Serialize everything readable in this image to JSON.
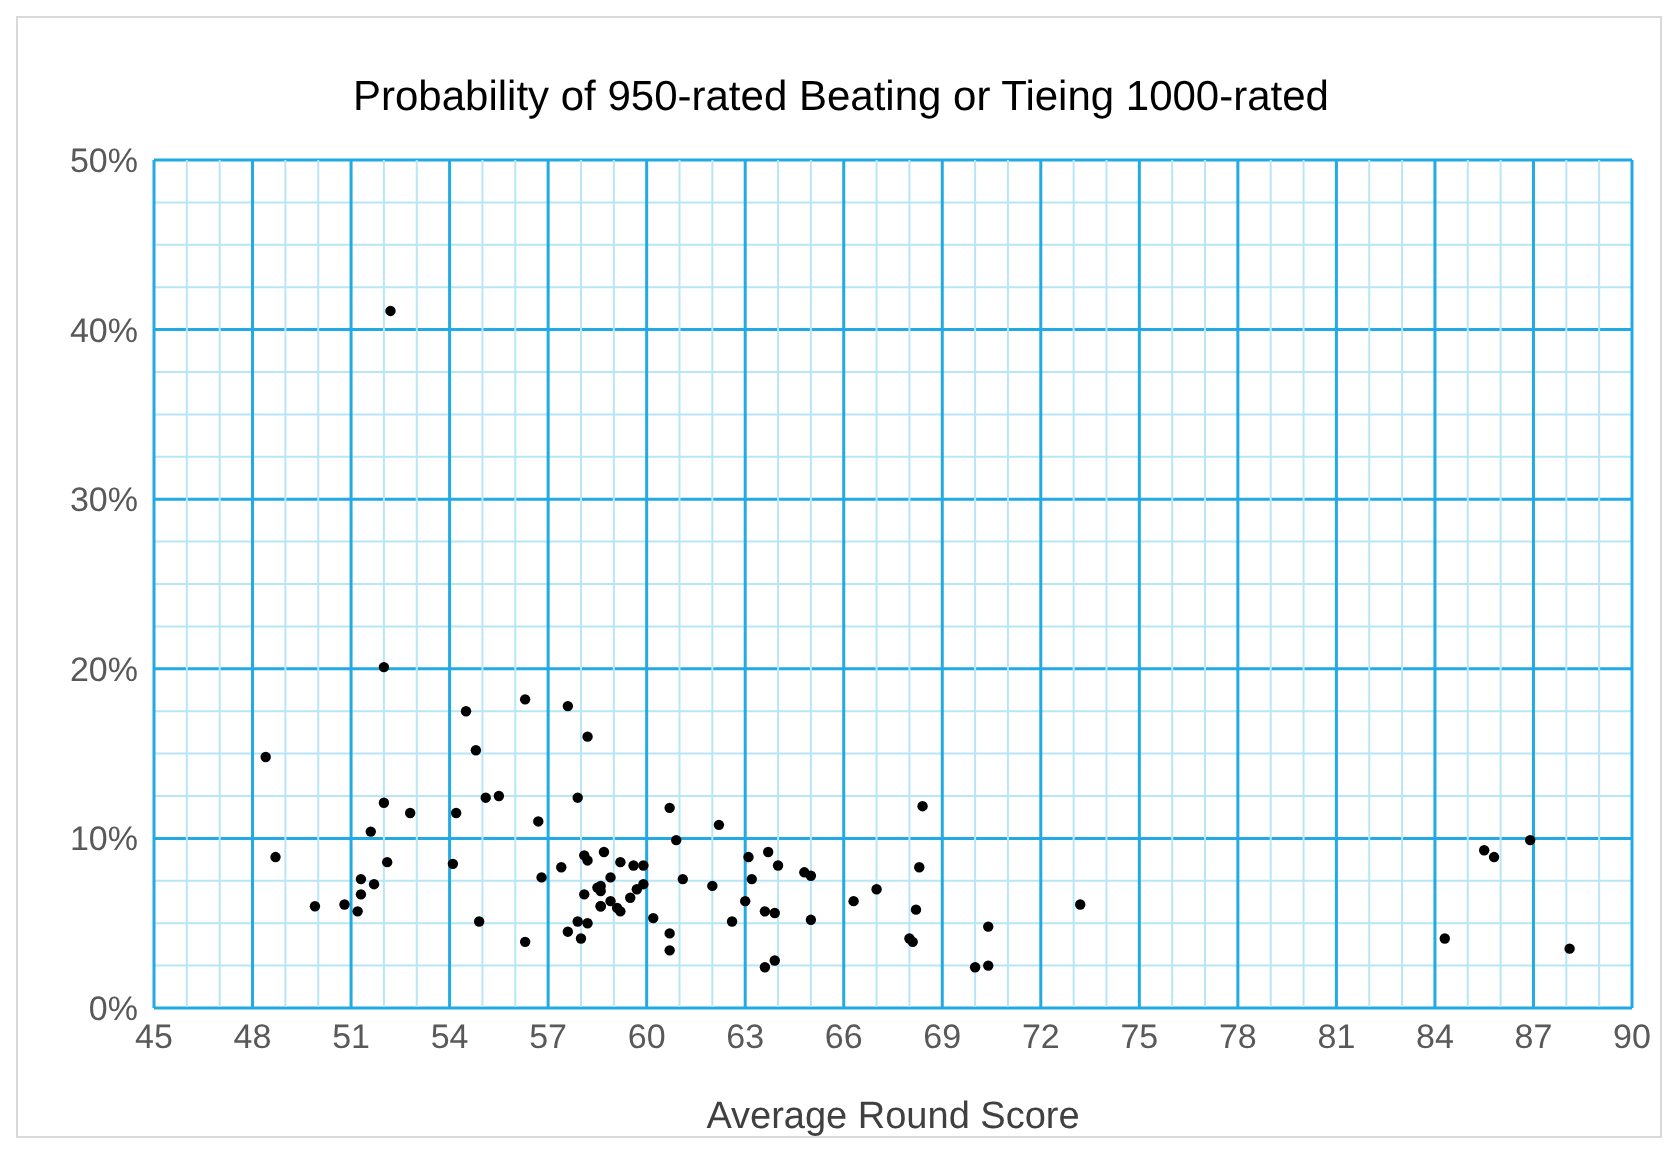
{
  "chart_data": {
    "type": "scatter",
    "title": "Probability of 950-rated Beating or Tieing 1000-rated",
    "xlabel": "Average Round Score",
    "xlim": [
      45,
      90
    ],
    "xticks": [
      45,
      {
        "value": 46,
        "label": null
      },
      {
        "value": 47,
        "label": null
      },
      48,
      {
        "value": 49,
        "label": null
      },
      {
        "value": 50,
        "label": null
      },
      51,
      {
        "value": 52,
        "label": null
      },
      {
        "value": 53,
        "label": null
      },
      54,
      {
        "value": 55,
        "label": null
      },
      {
        "value": 56,
        "label": null
      },
      57,
      {
        "value": 58,
        "label": null
      },
      {
        "value": 59,
        "label": null
      },
      60,
      {
        "value": 61,
        "label": null
      },
      {
        "value": 62,
        "label": null
      },
      63,
      {
        "value": 64,
        "label": null
      },
      {
        "value": 65,
        "label": null
      },
      66,
      {
        "value": 67,
        "label": null
      },
      {
        "value": 68,
        "label": null
      },
      69,
      {
        "value": 70,
        "label": null
      },
      {
        "value": 71,
        "label": null
      },
      72,
      {
        "value": 73,
        "label": null
      },
      {
        "value": 74,
        "label": null
      },
      75,
      {
        "value": 76,
        "label": null
      },
      {
        "value": 77,
        "label": null
      },
      78,
      {
        "value": 79,
        "label": null
      },
      {
        "value": 80,
        "label": null
      },
      81,
      {
        "value": 82,
        "label": null
      },
      {
        "value": 83,
        "label": null
      },
      84,
      {
        "value": 85,
        "label": null
      },
      {
        "value": 86,
        "label": null
      },
      87,
      {
        "value": 88,
        "label": null
      },
      {
        "value": 89,
        "label": null
      },
      90
    ],
    "ylim": [
      0,
      50
    ],
    "yticks": [
      {
        "value": 0,
        "label": "0%"
      },
      {
        "value": 2.5,
        "label": null
      },
      {
        "value": 5,
        "label": null
      },
      {
        "value": 7.5,
        "label": null
      },
      {
        "value": 10,
        "label": "10%"
      },
      {
        "value": 12.5,
        "label": null
      },
      {
        "value": 15,
        "label": null
      },
      {
        "value": 17.5,
        "label": null
      },
      {
        "value": 20,
        "label": "20%"
      },
      {
        "value": 22.5,
        "label": null
      },
      {
        "value": 25,
        "label": null
      },
      {
        "value": 27.5,
        "label": null
      },
      {
        "value": 30,
        "label": "30%"
      },
      {
        "value": 32.5,
        "label": null
      },
      {
        "value": 35,
        "label": null
      },
      {
        "value": 37.5,
        "label": null
      },
      {
        "value": 40,
        "label": "40%"
      },
      {
        "value": 42.5,
        "label": null
      },
      {
        "value": 45,
        "label": null
      },
      {
        "value": 47.5,
        "label": null
      },
      {
        "value": 50,
        "label": "50%"
      }
    ],
    "grid": true,
    "marker": "circle",
    "legend": false,
    "series": [
      {
        "color": "#000000",
        "x": [
          48.4,
          48.7,
          49.9,
          50.8,
          51.2,
          51.3,
          51.3,
          51.6,
          51.7,
          52.0,
          52.0,
          52.1,
          52.2,
          52.8,
          54.1,
          54.2,
          54.5,
          54.8,
          54.9,
          55.1,
          55.5,
          56.3,
          56.3,
          56.7,
          56.8,
          57.4,
          57.6,
          57.6,
          57.9,
          57.9,
          58.0,
          58.1,
          58.1,
          58.2,
          58.2,
          58.2,
          58.5,
          58.6,
          58.6,
          58.6,
          58.6,
          58.7,
          58.9,
          58.9,
          59.1,
          59.2,
          59.2,
          59.5,
          59.6,
          59.7,
          59.9,
          59.9,
          60.2,
          60.7,
          60.7,
          60.7,
          60.9,
          61.1,
          62.0,
          62.2,
          62.6,
          63.0,
          63.1,
          63.2,
          63.6,
          63.6,
          63.7,
          63.9,
          63.9,
          64.0,
          64.8,
          65.0,
          65.0,
          66.3,
          67.0,
          68.0,
          68.1,
          68.2,
          68.3,
          68.4,
          70.0,
          70.4,
          70.4,
          73.2,
          84.3,
          85.5,
          85.8,
          86.9,
          88.1
        ],
        "values": [
          14.8,
          8.9,
          6.0,
          6.1,
          5.7,
          6.7,
          7.6,
          10.4,
          7.3,
          20.1,
          12.1,
          8.6,
          41.1,
          11.5,
          8.5,
          11.5,
          17.5,
          15.2,
          5.1,
          12.4,
          12.5,
          3.9,
          18.2,
          11.0,
          7.7,
          8.3,
          17.8,
          4.5,
          12.4,
          5.1,
          4.1,
          9.0,
          6.7,
          8.7,
          16.0,
          5.0,
          7.1,
          6.9,
          7.2,
          6.0,
          6.0,
          9.2,
          7.7,
          6.3,
          5.9,
          8.6,
          5.7,
          6.5,
          8.4,
          7.0,
          8.4,
          7.3,
          5.3,
          11.8,
          4.4,
          3.4,
          9.9,
          7.6,
          7.2,
          10.8,
          5.1,
          6.3,
          8.9,
          7.6,
          5.7,
          2.4,
          9.2,
          5.6,
          2.8,
          8.4,
          8.0,
          7.8,
          5.2,
          6.3,
          7.0,
          4.1,
          3.9,
          5.8,
          8.3,
          11.9,
          2.4,
          4.8,
          2.5,
          6.1,
          4.1,
          9.3,
          8.9,
          9.9,
          3.5
        ]
      }
    ]
  }
}
